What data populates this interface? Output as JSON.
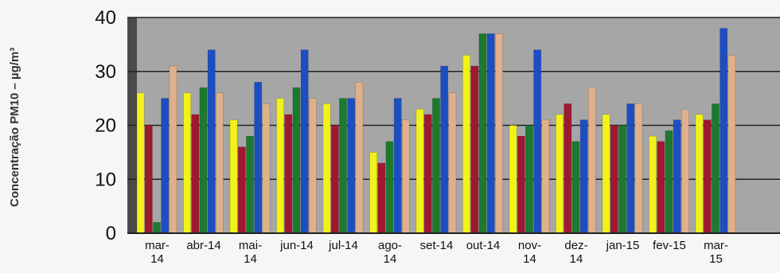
{
  "chart_data": {
    "type": "bar",
    "ylabel": "Concentração PM10 – µg/m³",
    "ylim": [
      0,
      40
    ],
    "yticks": [
      0,
      10,
      20,
      30,
      40
    ],
    "grid": true,
    "categories": [
      "mar-14",
      "abr-14",
      "mai-14",
      "jun-14",
      "jul-14",
      "ago-14",
      "set-14",
      "out-14",
      "nov-14",
      "dez-14",
      "jan-15",
      "fev-15",
      "mar-15"
    ],
    "category_labels": [
      [
        "mar-",
        "14"
      ],
      [
        "abr-14"
      ],
      [
        "mai-",
        "14"
      ],
      [
        "jun-14"
      ],
      [
        "jul-14"
      ],
      [
        "ago-",
        "14"
      ],
      [
        "set-14"
      ],
      [
        "out-14"
      ],
      [
        "nov-",
        "14"
      ],
      [
        "dez-",
        "14"
      ],
      [
        "jan-15"
      ],
      [
        "fev-15"
      ],
      [
        "mar-",
        "15"
      ]
    ],
    "colors": [
      "#f2f21a",
      "#a01830",
      "#1c7a30",
      "#1c4ec2",
      "#e0b08c"
    ],
    "series": [
      {
        "values": [
          26,
          26,
          21,
          25,
          24,
          15,
          23,
          33,
          20,
          22,
          22,
          18,
          22
        ]
      },
      {
        "values": [
          20,
          22,
          16,
          22,
          20,
          13,
          22,
          31,
          18,
          24,
          20,
          17,
          21
        ]
      },
      {
        "values": [
          2,
          27,
          18,
          27,
          25,
          17,
          25,
          37,
          20,
          17,
          20,
          19,
          24
        ]
      },
      {
        "values": [
          25,
          34,
          28,
          34,
          25,
          25,
          31,
          37,
          34,
          21,
          24,
          21,
          38
        ]
      },
      {
        "values": [
          31,
          26,
          24,
          25,
          28,
          21,
          26,
          37,
          21,
          27,
          24,
          23,
          33
        ]
      }
    ]
  }
}
